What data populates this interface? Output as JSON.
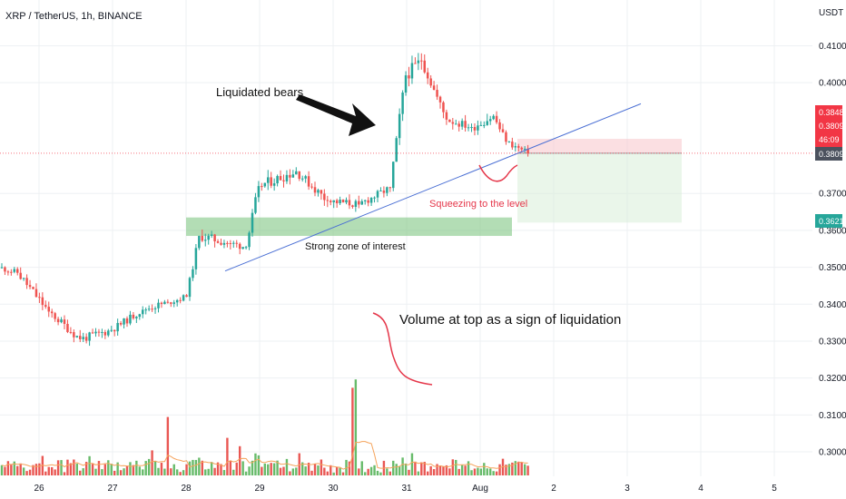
{
  "header": {
    "symbol_title": "XRP / TetherUS, 1h, BINANCE",
    "currency": "USDT"
  },
  "price_axis": {
    "ticks": [
      "0.4100",
      "0.4000",
      "0.3700",
      "0.3600",
      "0.3500",
      "0.3400",
      "0.3300",
      "0.3200",
      "0.3100",
      "0.3000"
    ],
    "labels": {
      "target_price": "0.3848",
      "current_price": "0.3809",
      "countdown": "46:09",
      "last_price": "0.3809",
      "stop_price": "0.3621"
    }
  },
  "time_axis": {
    "ticks": [
      "26",
      "27",
      "28",
      "29",
      "30",
      "31",
      "Aug",
      "2",
      "3",
      "4",
      "5"
    ]
  },
  "annotations": {
    "liquidated": "Liquidated bears",
    "squeezing": "Squeezing to the level",
    "zone": "Strong zone of interest",
    "volume": "Volume at top as a sign of liquidation"
  },
  "colors": {
    "up": "#26a69a",
    "down": "#ef5350",
    "trendline": "#4a6fd4",
    "zone": "#81c784",
    "annotation_red": "#e5374a",
    "ma": "#f5a35b"
  },
  "chart_data": {
    "type": "candlestick",
    "title": "XRP / TetherUS, 1h, BINANCE",
    "ylim": [
      0.2955,
      0.4145
    ],
    "y_ticks": [
      0.41,
      0.4,
      0.37,
      0.36,
      0.35,
      0.34,
      0.33,
      0.32,
      0.31,
      0.3
    ],
    "x_ticks": [
      "26",
      "27",
      "28",
      "29",
      "30",
      "31",
      "Aug",
      "2",
      "3",
      "4",
      "5"
    ],
    "legs": [
      {
        "bars": 6,
        "to": 0.3485,
        "wick": 0.0012
      },
      {
        "bars": 10,
        "to": 0.338,
        "wick": 0.0018
      },
      {
        "bars": 10,
        "to": 0.3305,
        "wick": 0.0016
      },
      {
        "bars": 10,
        "to": 0.333,
        "wick": 0.0016
      },
      {
        "bars": 10,
        "to": 0.3385,
        "wick": 0.0014
      },
      {
        "bars": 8,
        "to": 0.3405,
        "wick": 0.0014
      },
      {
        "bars": 6,
        "to": 0.342,
        "wick": 0.0012
      },
      {
        "bars": 4,
        "to": 0.3585,
        "wick": 0.0015
      },
      {
        "bars": 10,
        "to": 0.3565,
        "wick": 0.0018
      },
      {
        "bars": 5,
        "to": 0.3555,
        "wick": 0.0015
      },
      {
        "bars": 4,
        "to": 0.372,
        "wick": 0.0018
      },
      {
        "bars": 12,
        "to": 0.376,
        "wick": 0.002
      },
      {
        "bars": 10,
        "to": 0.368,
        "wick": 0.0018
      },
      {
        "bars": 10,
        "to": 0.367,
        "wick": 0.0016
      },
      {
        "bars": 10,
        "to": 0.3715,
        "wick": 0.0015
      },
      {
        "bars": 2,
        "to": 0.385,
        "wick": 0.0012
      },
      {
        "bars": 3,
        "to": 0.402,
        "wick": 0.002
      },
      {
        "bars": 5,
        "to": 0.406,
        "wick": 0.0025
      },
      {
        "bars": 8,
        "to": 0.39,
        "wick": 0.0018
      },
      {
        "bars": 8,
        "to": 0.388,
        "wick": 0.0016
      },
      {
        "bars": 7,
        "to": 0.391,
        "wick": 0.002
      },
      {
        "bars": 4,
        "to": 0.384,
        "wick": 0.0016
      },
      {
        "bars": 7,
        "to": 0.3809,
        "wick": 0.0012
      }
    ],
    "volume_spikes": [
      {
        "bar": 53,
        "value": 14
      },
      {
        "bar": 112,
        "value": 21
      },
      {
        "bar": 113,
        "value": 23
      },
      {
        "bar": 72,
        "value": 9
      },
      {
        "bar": 76,
        "value": 7
      },
      {
        "bar": 48,
        "value": 6
      }
    ],
    "trendline": {
      "from_price": 0.349,
      "to_price": 0.3943
    },
    "zone": {
      "top": 0.3635,
      "bottom": 0.3585
    },
    "position": {
      "entry": 0.3809,
      "target": 0.3848,
      "stop": 0.3621
    },
    "last_price": 0.3809
  }
}
